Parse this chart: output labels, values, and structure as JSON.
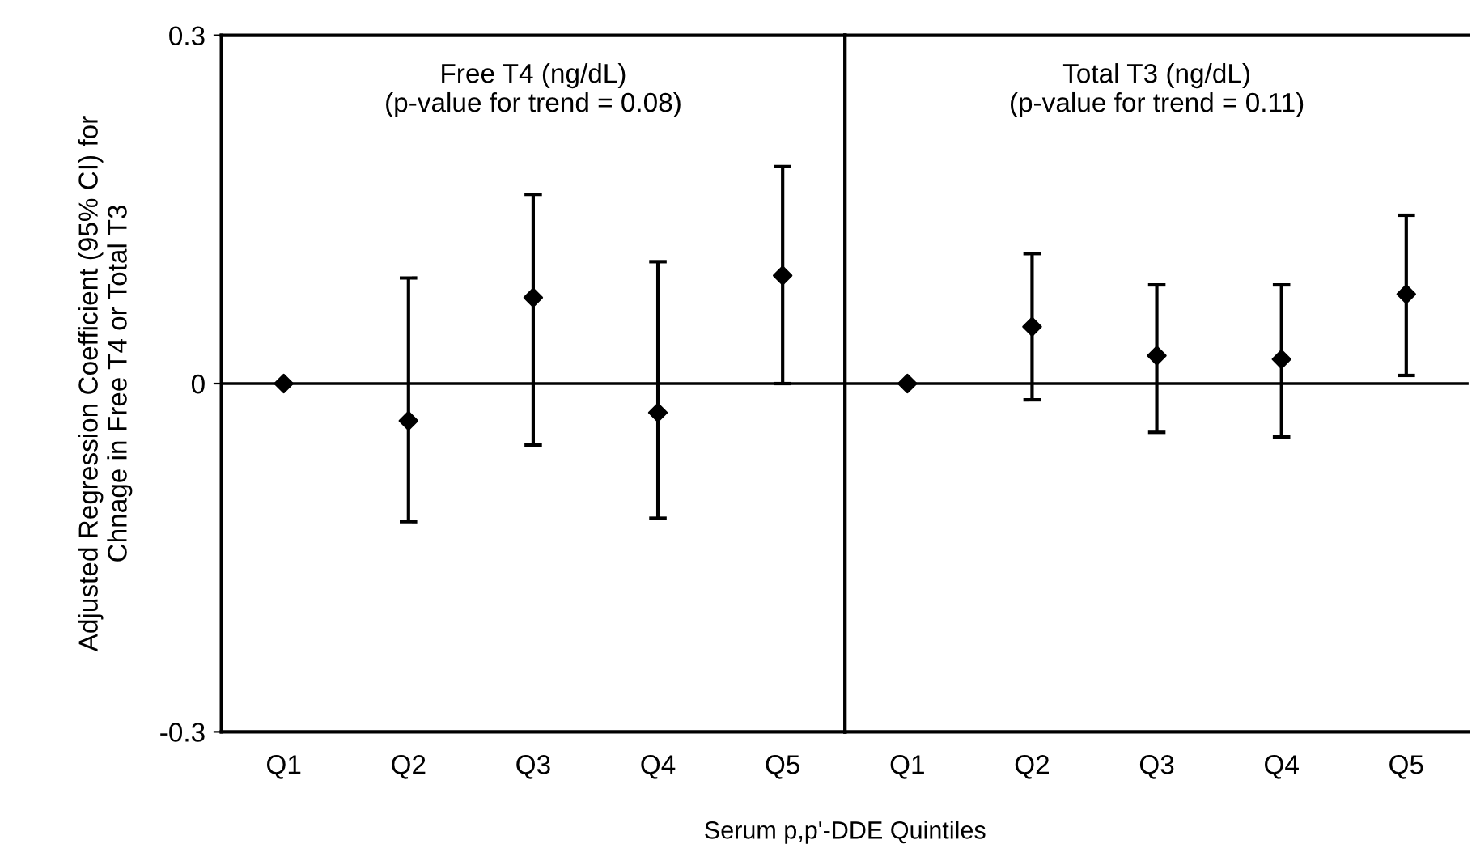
{
  "chart_data": [
    {
      "type": "scatter",
      "categories": [
        "Q1",
        "Q2",
        "Q3",
        "Q4",
        "Q5"
      ],
      "values": [
        0,
        -0.032,
        0.074,
        -0.025,
        0.093
      ],
      "errors": [
        null,
        [
          -0.119,
          0.091
        ],
        [
          -0.053,
          0.163
        ],
        [
          -0.116,
          0.105
        ],
        [
          0,
          0.187
        ]
      ],
      "color": "#000000",
      "marker": "diamond",
      "ylim": [
        -0.3,
        0.3
      ],
      "yticks": [
        -0.3,
        0,
        0.3
      ],
      "ylabel": "Adjusted Regression Coefficient (95% CI) for\nChnage in Free T4 or Total T3",
      "xlabel": "Serum p,p'-DDE Quintiles",
      "annotations": [
        "Free T4 (ng/dL)\n(p-value for trend = 0.08)"
      ],
      "ref_lines": [
        {
          "axis": "y",
          "value": 0
        }
      ],
      "grid": false,
      "legend": false
    },
    {
      "type": "scatter",
      "categories": [
        "Q1",
        "Q2",
        "Q3",
        "Q4",
        "Q5"
      ],
      "values": [
        0,
        0.049,
        0.024,
        0.021,
        0.077
      ],
      "errors": [
        null,
        [
          -0.014,
          0.112
        ],
        [
          -0.042,
          0.085
        ],
        [
          -0.046,
          0.085
        ],
        [
          0.007,
          0.145
        ]
      ],
      "color": "#000000",
      "marker": "diamond",
      "ylim": [
        -0.3,
        0.3
      ],
      "tick_labels": "x",
      "annotations": [
        "Total T3 (ng/dL)\n(p-value for trend = 0.11)"
      ],
      "ref_lines": [
        {
          "axis": "y",
          "value": 0
        }
      ],
      "grid": false,
      "legend": false
    }
  ]
}
